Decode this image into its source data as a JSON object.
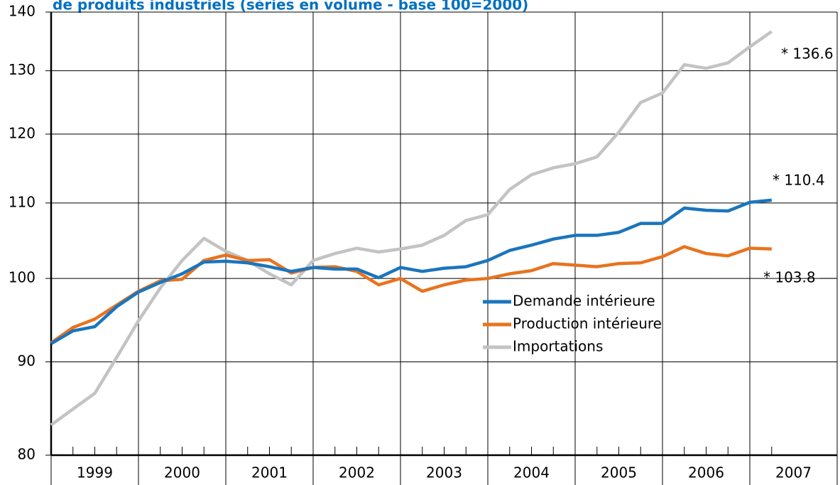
{
  "chart_data": {
    "type": "line",
    "title": "de produits industriels (séries en volume - base 100=2000)",
    "x": [
      1999,
      1999.25,
      1999.5,
      1999.75,
      2000,
      2000.25,
      2000.5,
      2000.75,
      2001,
      2001.25,
      2001.5,
      2001.75,
      2002,
      2002.25,
      2002.5,
      2002.75,
      2003,
      2003.25,
      2003.5,
      2003.75,
      2004,
      2004.25,
      2004.5,
      2004.75,
      2005,
      2005.25,
      2005.5,
      2005.75,
      2006,
      2006.25,
      2006.5,
      2006.75,
      2007,
      2007.25
    ],
    "series": [
      {
        "name": "Demande intérieure",
        "color": "#1b75bc",
        "values": [
          92.1,
          93.6,
          94.1,
          96.5,
          98.3,
          99.5,
          100.6,
          102.1,
          102.2,
          102.0,
          101.5,
          100.9,
          101.4,
          101.2,
          101.2,
          100.1,
          101.4,
          100.9,
          101.3,
          101.5,
          102.3,
          103.6,
          104.3,
          105.1,
          105.6,
          105.6,
          106.0,
          107.2,
          107.2,
          109.3,
          109.0,
          108.9,
          110.1,
          110.4
        ]
      },
      {
        "name": "Production intérieure",
        "color": "#e8731f",
        "values": [
          92.2,
          94.0,
          95.0,
          96.7,
          98.4,
          99.7,
          99.9,
          102.3,
          103.0,
          102.3,
          102.4,
          100.7,
          101.4,
          101.5,
          100.9,
          99.2,
          100.0,
          98.4,
          99.2,
          99.8,
          100.0,
          100.6,
          101.0,
          101.9,
          101.7,
          101.5,
          101.9,
          102.0,
          102.8,
          104.1,
          103.2,
          102.9,
          103.9,
          103.8
        ]
      },
      {
        "name": "Importations",
        "color": "#c3c3c3",
        "values": [
          83.1,
          84.8,
          86.5,
          90.5,
          94.8,
          98.8,
          102.3,
          105.2,
          103.5,
          102.3,
          100.6,
          99.2,
          102.3,
          103.2,
          103.9,
          103.4,
          103.8,
          104.3,
          105.6,
          107.6,
          108.4,
          111.9,
          114.0,
          115.0,
          115.6,
          116.6,
          120.3,
          124.9,
          126.4,
          131.0,
          130.4,
          131.3,
          134.0,
          136.6
        ]
      }
    ],
    "annotations": [
      "* 136.6",
      "* 110.4",
      "* 103.8"
    ],
    "xlim": [
      1999,
      2008
    ],
    "xticks": [
      1999,
      2000,
      2001,
      2002,
      2003,
      2004,
      2005,
      2006,
      2007
    ],
    "ylim": [
      80,
      140
    ],
    "yticks": [
      80,
      90,
      100,
      110,
      120,
      130,
      140
    ],
    "log_scale": true,
    "grid": true
  }
}
